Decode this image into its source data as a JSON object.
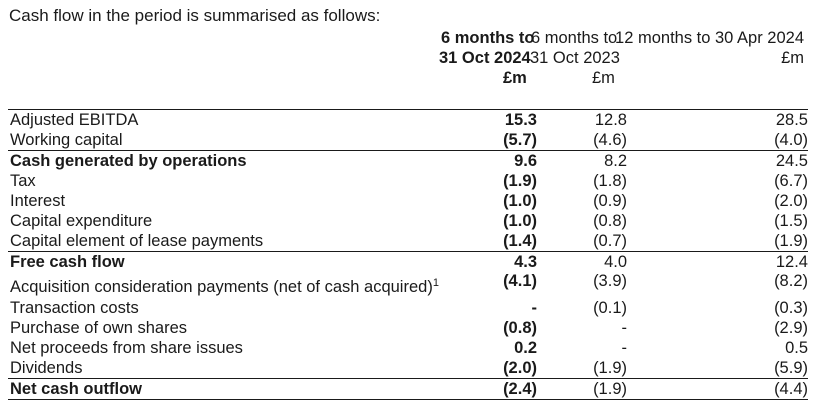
{
  "intro": "Cash flow in the period is summarised as follows:",
  "columns": {
    "c1": {
      "line1": "6 months to",
      "line2": "31 Oct 2024",
      "unit": "£m"
    },
    "c2": {
      "line1": "6 months to",
      "line2": "31 Oct 2023",
      "unit": "£m"
    },
    "c3": {
      "line1": "12 months to 30 Apr 2024",
      "unit": "£m"
    }
  },
  "rows": [
    {
      "label": "Adjusted EBITDA",
      "c1": "15.3",
      "c2": "12.8",
      "c3": "28.5"
    },
    {
      "label": "Working capital",
      "c1": "(5.7)",
      "c2": "(4.6)",
      "c3": "(4.0)"
    },
    {
      "label": "Cash generated by operations",
      "c1": "9.6",
      "c2": "8.2",
      "c3": "24.5"
    },
    {
      "label": "Tax",
      "c1": "(1.9)",
      "c2": "(1.8)",
      "c3": "(6.7)"
    },
    {
      "label": "Interest",
      "c1": "(1.0)",
      "c2": "(0.9)",
      "c3": "(2.0)"
    },
    {
      "label": "Capital expenditure",
      "c1": "(1.0)",
      "c2": "(0.8)",
      "c3": "(1.5)"
    },
    {
      "label": "Capital element of lease payments",
      "c1": "(1.4)",
      "c2": "(0.7)",
      "c3": "(1.9)"
    },
    {
      "label": "Free cash flow",
      "c1": "4.3",
      "c2": "4.0",
      "c3": "12.4"
    },
    {
      "label": "Acquisition consideration payments (net of cash acquired)",
      "sup": "1",
      "c1": "(4.1)",
      "c2": "(3.9)",
      "c3": "(8.2)"
    },
    {
      "label": "Transaction costs",
      "c1": "-",
      "c2": "(0.1)",
      "c3": "(0.3)"
    },
    {
      "label": "Purchase of own shares",
      "c1": "(0.8)",
      "c2": "-",
      "c3": "(2.9)"
    },
    {
      "label": "Net proceeds from share issues",
      "c1": "0.2",
      "c2": "-",
      "c3": "0.5"
    },
    {
      "label": "Dividends",
      "c1": "(2.0)",
      "c2": "(1.9)",
      "c3": "(5.9)"
    },
    {
      "label": "Net cash outflow",
      "c1": "(2.4)",
      "c2": "(1.9)",
      "c3": "(4.4)"
    }
  ]
}
